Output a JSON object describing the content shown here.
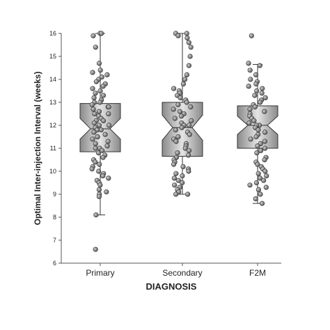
{
  "chart_data": {
    "type": "box",
    "variant": "notched box plot with jittered points",
    "xlabel": "DIAGNOSIS",
    "ylabel": "Optimal Inter-injection Interval (weeks)",
    "ylim": [
      6,
      16
    ],
    "yticks": [
      6,
      7,
      8,
      9,
      10,
      11,
      12,
      13,
      14,
      15,
      16
    ],
    "categories": [
      "Primary",
      "Secondary",
      "F2M"
    ],
    "grid": false,
    "legend": "none",
    "box_stats": [
      {
        "category": "Primary",
        "q1": 10.85,
        "median": 11.85,
        "q3": 12.95,
        "notch_low": 11.4,
        "notch_high": 12.3,
        "whisker_low": 8.1,
        "whisker_high": 16.0
      },
      {
        "category": "Secondary",
        "q1": 10.65,
        "median": 11.9,
        "q3": 13.0,
        "notch_low": 11.35,
        "notch_high": 12.45,
        "whisker_low": 9.0,
        "whisker_high": 16.0
      },
      {
        "category": "F2M",
        "q1": 11.0,
        "median": 12.0,
        "q3": 12.85,
        "notch_low": 11.6,
        "notch_high": 12.4,
        "whisker_low": 8.6,
        "whisker_high": 14.65
      }
    ],
    "points": [
      {
        "category": "Primary",
        "values": [
          16.0,
          16.0,
          15.9,
          15.4,
          14.7,
          14.4,
          14.3,
          14.2,
          14.1,
          14.0,
          13.9,
          13.8,
          13.7,
          13.6,
          13.5,
          13.4,
          13.3,
          13.2,
          13.1,
          13.0,
          13.0,
          12.9,
          12.8,
          12.8,
          12.7,
          12.6,
          12.5,
          12.5,
          12.4,
          12.3,
          12.2,
          12.2,
          12.1,
          12.0,
          12.0,
          11.9,
          11.8,
          11.8,
          11.7,
          11.6,
          11.5,
          11.5,
          11.4,
          11.3,
          11.2,
          11.1,
          11.0,
          11.0,
          10.9,
          10.8,
          10.7,
          10.6,
          10.5,
          10.4,
          10.3,
          10.2,
          10.1,
          10.0,
          9.9,
          9.8,
          9.7,
          9.6,
          9.5,
          9.4,
          9.2,
          9.1,
          9.0,
          8.9,
          8.1,
          6.6
        ]
      },
      {
        "category": "Secondary",
        "values": [
          16.0,
          16.0,
          15.9,
          15.8,
          15.6,
          15.4,
          15.0,
          14.6,
          14.2,
          14.0,
          13.8,
          13.6,
          13.5,
          13.4,
          13.3,
          13.2,
          13.1,
          13.0,
          12.9,
          12.8,
          12.7,
          12.6,
          12.5,
          12.4,
          12.3,
          12.2,
          12.1,
          12.0,
          12.0,
          11.9,
          11.8,
          11.7,
          11.6,
          11.5,
          11.4,
          11.3,
          11.2,
          11.1,
          11.0,
          10.9,
          10.8,
          10.7,
          10.6,
          10.5,
          10.4,
          10.3,
          10.2,
          10.1,
          10.0,
          9.9,
          9.8,
          9.7,
          9.6,
          9.5,
          9.4,
          9.3,
          9.2,
          9.1,
          9.0,
          9.0
        ]
      },
      {
        "category": "F2M",
        "values": [
          15.9,
          14.7,
          14.6,
          14.4,
          14.2,
          14.0,
          13.9,
          13.8,
          13.7,
          13.6,
          13.5,
          13.4,
          13.3,
          13.2,
          13.1,
          13.0,
          12.9,
          12.8,
          12.7,
          12.6,
          12.5,
          12.4,
          12.3,
          12.2,
          12.1,
          12.0,
          12.0,
          11.9,
          11.8,
          11.7,
          11.6,
          11.5,
          11.4,
          11.3,
          11.2,
          11.1,
          11.0,
          10.9,
          10.8,
          10.6,
          10.5,
          10.4,
          10.3,
          10.2,
          10.1,
          10.0,
          9.9,
          9.8,
          9.7,
          9.6,
          9.5,
          9.4,
          9.3,
          9.2,
          9.0,
          8.8,
          8.6
        ]
      }
    ],
    "colors": {
      "box_fill_dark": "#8a8a8a",
      "box_fill_light": "#e4e4e4",
      "box_stroke": "#333333",
      "point_fill": "#7a7a7a",
      "point_stroke": "#333333",
      "axis": "#555555"
    }
  }
}
